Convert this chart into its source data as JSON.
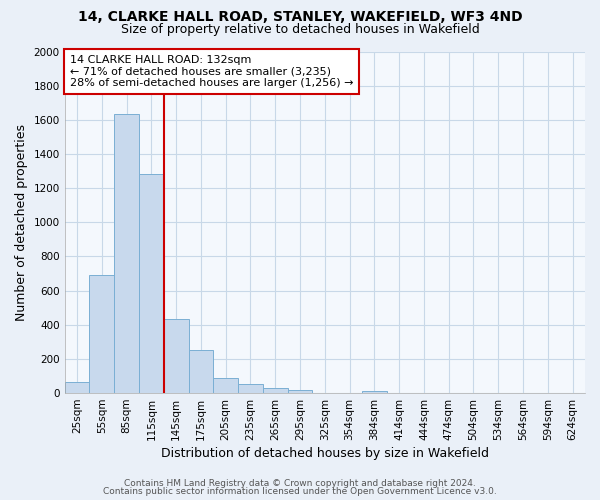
{
  "title_line1": "14, CLARKE HALL ROAD, STANLEY, WAKEFIELD, WF3 4ND",
  "title_line2": "Size of property relative to detached houses in Wakefield",
  "xlabel": "Distribution of detached houses by size in Wakefield",
  "ylabel": "Number of detached properties",
  "categories": [
    "25sqm",
    "55sqm",
    "85sqm",
    "115sqm",
    "145sqm",
    "175sqm",
    "205sqm",
    "235sqm",
    "265sqm",
    "295sqm",
    "325sqm",
    "354sqm",
    "384sqm",
    "414sqm",
    "444sqm",
    "474sqm",
    "504sqm",
    "534sqm",
    "564sqm",
    "594sqm",
    "624sqm"
  ],
  "values": [
    65,
    690,
    1635,
    1285,
    435,
    252,
    90,
    52,
    28,
    20,
    0,
    0,
    15,
    0,
    0,
    0,
    0,
    0,
    0,
    0,
    0
  ],
  "bar_color": "#c8d9ed",
  "bar_edge_color": "#7aafd4",
  "vline_color": "#cc0000",
  "vline_x_index": 2.55,
  "annotation_text": "14 CLARKE HALL ROAD: 132sqm\n← 71% of detached houses are smaller (3,235)\n28% of semi-detached houses are larger (1,256) →",
  "annotation_box_color": "#cc0000",
  "ylim": [
    0,
    2000
  ],
  "yticks": [
    0,
    200,
    400,
    600,
    800,
    1000,
    1200,
    1400,
    1600,
    1800,
    2000
  ],
  "footer_line1": "Contains HM Land Registry data © Crown copyright and database right 2024.",
  "footer_line2": "Contains public sector information licensed under the Open Government Licence v3.0.",
  "bg_color": "#eaf0f8",
  "plot_bg_color": "#f4f8fd",
  "grid_color": "#c8d8e8",
  "title_fontsize": 10,
  "subtitle_fontsize": 9,
  "axis_label_fontsize": 9,
  "tick_fontsize": 7.5,
  "footer_fontsize": 6.5,
  "annotation_fontsize": 8
}
